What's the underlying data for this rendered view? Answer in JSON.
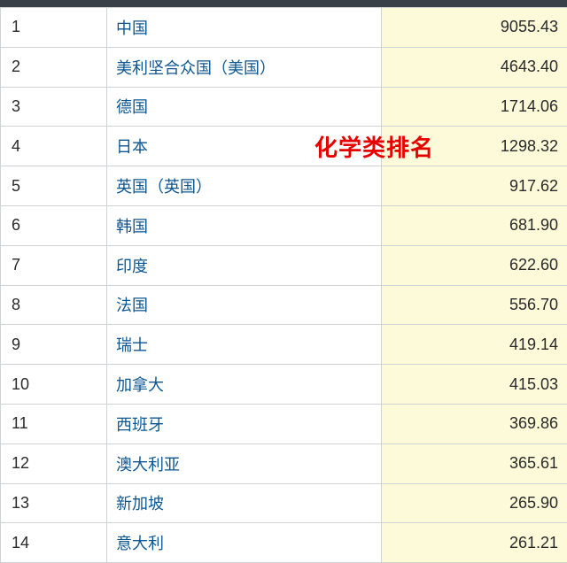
{
  "overlay_label": "化学类排名",
  "colors": {
    "header_bar": "#3a4047",
    "border": "#d0d3d6",
    "link": "#0d5690",
    "value_bg": "#fdfad9",
    "overlay_text": "#e60000",
    "text": "#2a2a2a"
  },
  "table": {
    "columns": [
      "rank",
      "country",
      "value"
    ],
    "rows": [
      {
        "rank": "1",
        "country": "中国",
        "value": "9055.43"
      },
      {
        "rank": "2",
        "country": "美利坚合众国（美国）",
        "value": "4643.40"
      },
      {
        "rank": "3",
        "country": "德国",
        "value": "1714.06"
      },
      {
        "rank": "4",
        "country": "日本",
        "value": "1298.32"
      },
      {
        "rank": "5",
        "country": "英国（英国）",
        "value": "917.62"
      },
      {
        "rank": "6",
        "country": "韩国",
        "value": "681.90"
      },
      {
        "rank": "7",
        "country": "印度",
        "value": "622.60"
      },
      {
        "rank": "8",
        "country": "法国",
        "value": "556.70"
      },
      {
        "rank": "9",
        "country": "瑞士",
        "value": "419.14"
      },
      {
        "rank": "10",
        "country": "加拿大",
        "value": "415.03"
      },
      {
        "rank": "11",
        "country": "西班牙",
        "value": "369.86"
      },
      {
        "rank": "12",
        "country": "澳大利亚",
        "value": "365.61"
      },
      {
        "rank": "13",
        "country": "新加坡",
        "value": "265.90"
      },
      {
        "rank": "14",
        "country": "意大利",
        "value": "261.21"
      }
    ]
  }
}
